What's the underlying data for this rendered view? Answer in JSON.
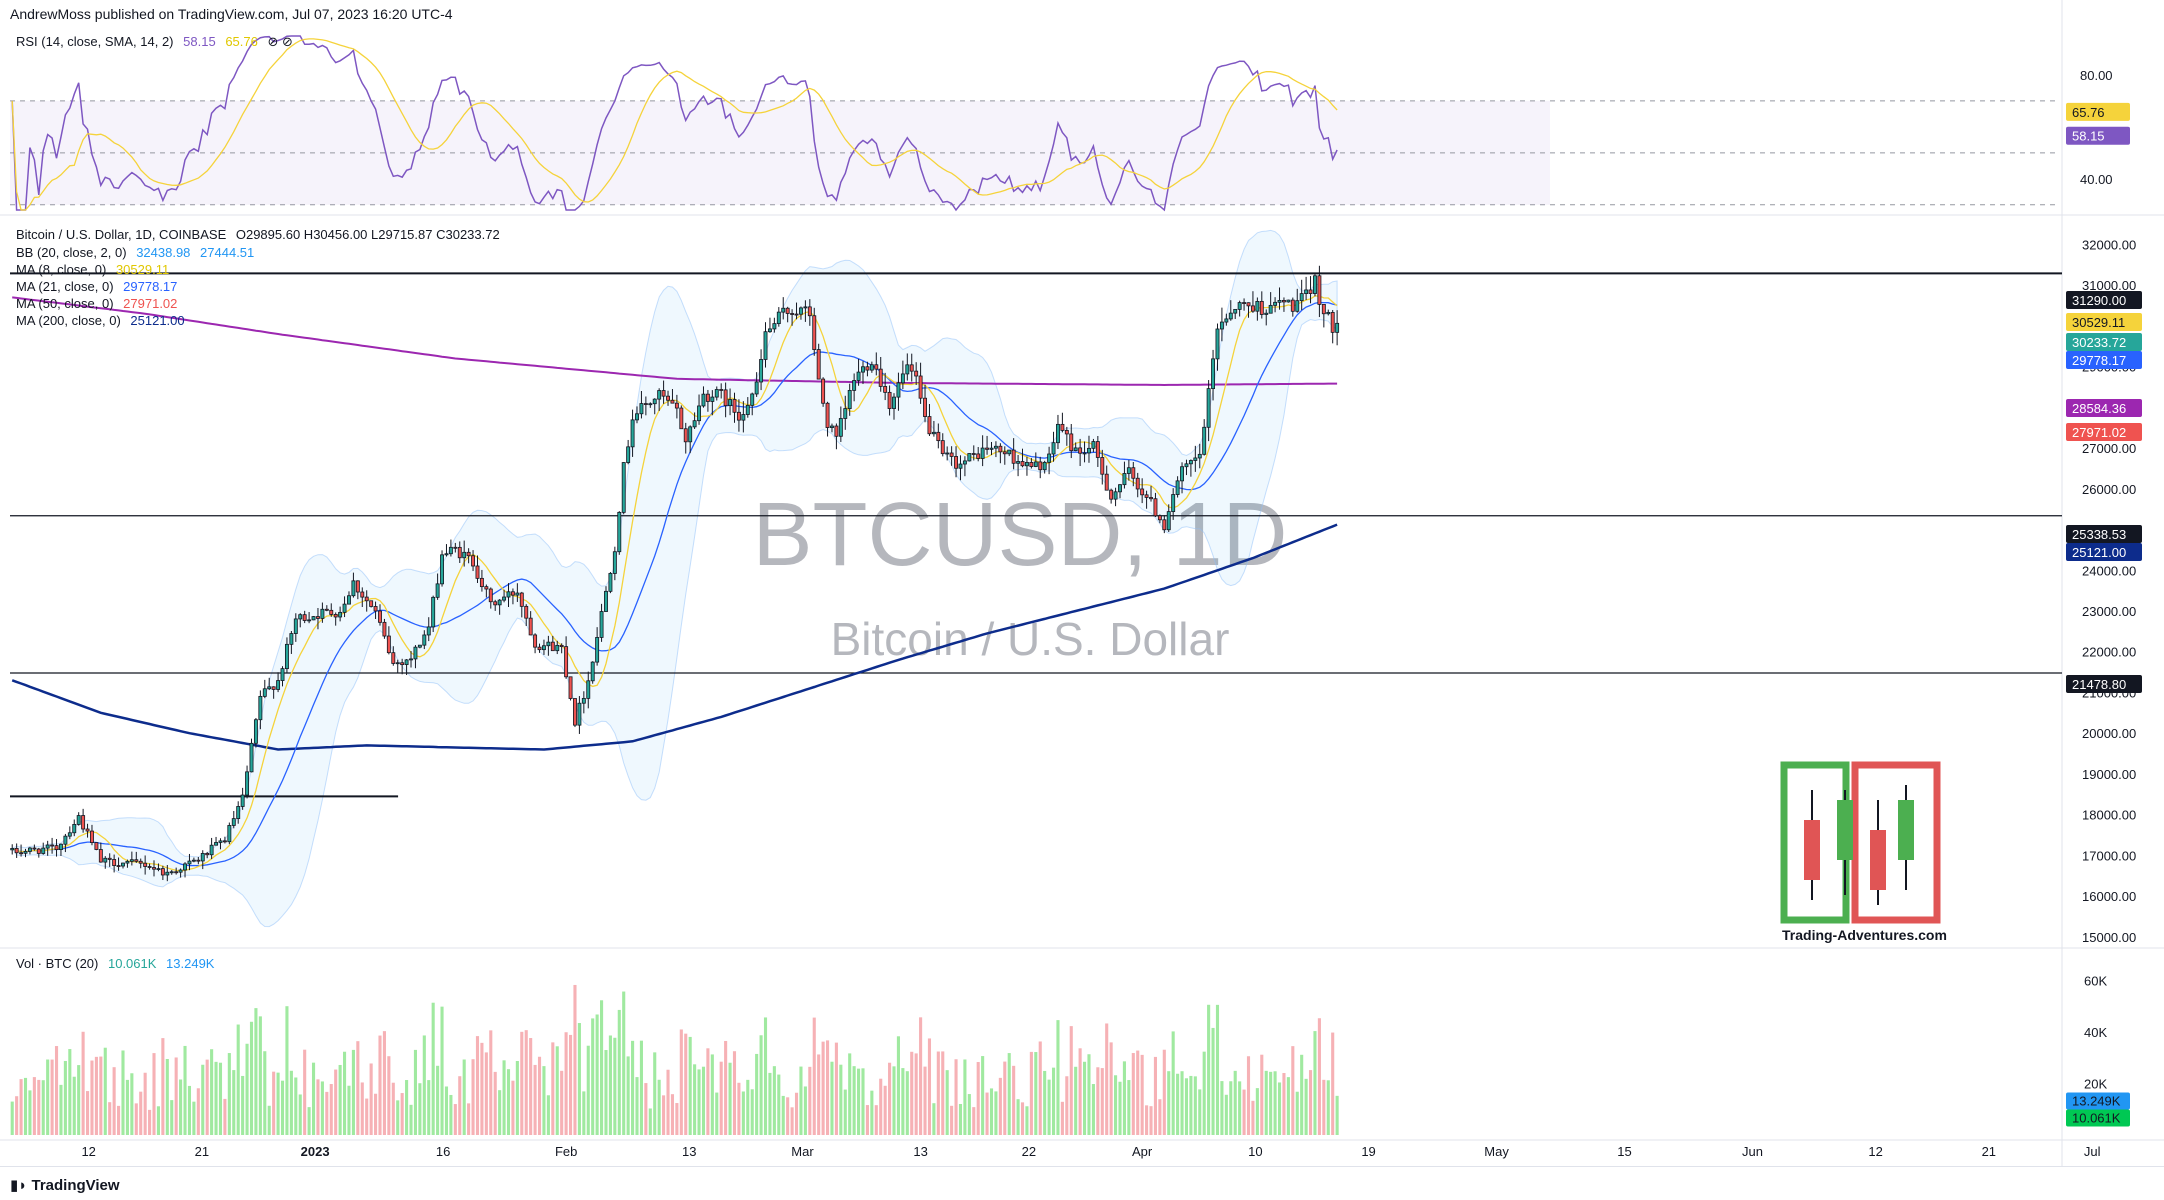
{
  "header": {
    "published": "AndrewMoss published on TradingView.com, Jul 07, 2023 16:20 UTC-4"
  },
  "footer": {
    "brand": "TradingView"
  },
  "rsi_legend": {
    "label": "RSI (14, close, SMA, 14, 2)",
    "rsi": "58.15",
    "sma": "65.76"
  },
  "price_legend": {
    "title": "Bitcoin / U.S. Dollar, 1D, COINBASE",
    "ohlc": "O29895.60  H30456.00  L29715.87  C30233.72",
    "bb": {
      "label": "BB (20, close, 2, 0)",
      "upper": "32438.98",
      "lower": "27444.51"
    },
    "ma8": {
      "label": "MA (8, close, 0)",
      "value": "30529.11"
    },
    "ma21": {
      "label": "MA (21, close, 0)",
      "value": "29778.17"
    },
    "ma50": {
      "label": "MA (50, close, 0)",
      "value": "27971.02"
    },
    "ma200": {
      "label": "MA (200, close, 0)",
      "value": "25121.00"
    }
  },
  "vol_legend": {
    "label": "Vol · BTC (20)",
    "vol": "10.061K",
    "ma": "13.249K"
  },
  "watermark": {
    "symbol": "BTCUSD, 1D",
    "name": "Bitcoin / U.S. Dollar"
  },
  "logo": {
    "text": "Trading-Adventures.com"
  },
  "colors": {
    "up": "#26a69a",
    "down": "#ef5350",
    "ma8": "#f5d33b",
    "ma21": "#2962ff",
    "ma50": "#ef5350",
    "ma200": "#0d2c8c",
    "ma_purple": "#9c27b0",
    "rsi": "#7e57c2",
    "bb_fill": "#2196f3"
  },
  "chart_data": {
    "type": "candlestick",
    "title": "BTCUSD, 1D",
    "x_ticks": [
      "12",
      "21",
      "2023",
      "16",
      "Feb",
      "13",
      "Mar",
      "13",
      "22",
      "Apr",
      "10",
      "19",
      "May",
      "15",
      "Jun",
      "12",
      "21",
      "Jul",
      "10",
      "19"
    ],
    "price_axis": {
      "ticks": [
        "32000.00",
        "31000.00",
        "30000.00",
        "29000.00",
        "28000.00",
        "27000.00",
        "26000.00",
        "25000.00",
        "24000.00",
        "23000.00",
        "22000.00",
        "21000.00",
        "20000.00",
        "19000.00",
        "18000.00",
        "17000.00",
        "16000.00",
        "15000.00"
      ],
      "ylim": [
        14800,
        32600
      ]
    },
    "price_labels": [
      {
        "value": "31290.00",
        "color": "#131722"
      },
      {
        "value": "30529.11",
        "color": "#f5d33b"
      },
      {
        "value": "30233.72",
        "color": "#26a69a"
      },
      {
        "value": "29778.17",
        "color": "#2962ff"
      },
      {
        "value": "28584.36",
        "color": "#9c27b0"
      },
      {
        "value": "27971.02",
        "color": "#ef5350"
      },
      {
        "value": "25338.53",
        "color": "#131722"
      },
      {
        "value": "25121.00",
        "color": "#0d2c8c"
      },
      {
        "value": "21478.80",
        "color": "#131722"
      }
    ],
    "horizontal_levels": [
      31290,
      25338.53,
      21478.8,
      18450
    ],
    "rsi_axis": {
      "ticks": [
        "80.00",
        "40.00"
      ],
      "ylim": [
        28,
        95
      ],
      "levels": [
        70,
        50,
        30
      ]
    },
    "rsi_labels": [
      {
        "value": "65.76",
        "color": "#f5d33b"
      },
      {
        "value": "58.15",
        "color": "#7e57c2"
      }
    ],
    "vol_axis": {
      "ticks": [
        "60K",
        "40K",
        "20K"
      ],
      "ylim": [
        0,
        68
      ]
    },
    "vol_labels": [
      {
        "value": "13.249K",
        "color": "#2196f3"
      },
      {
        "value": "10.061K",
        "color": "#26a69a"
      }
    ],
    "price_anchors": [
      [
        0,
        17080
      ],
      [
        10,
        17180
      ],
      [
        15,
        17950
      ],
      [
        20,
        16850
      ],
      [
        30,
        16780
      ],
      [
        35,
        16550
      ],
      [
        42,
        16900
      ],
      [
        48,
        17400
      ],
      [
        52,
        18400
      ],
      [
        56,
        20900
      ],
      [
        60,
        21300
      ],
      [
        64,
        22800
      ],
      [
        70,
        22950
      ],
      [
        74,
        23000
      ],
      [
        77,
        23700
      ],
      [
        82,
        22950
      ],
      [
        86,
        21700
      ],
      [
        90,
        21850
      ],
      [
        94,
        22600
      ],
      [
        97,
        24400
      ],
      [
        100,
        24500
      ],
      [
        104,
        24200
      ],
      [
        108,
        23150
      ],
      [
        114,
        23500
      ],
      [
        118,
        22200
      ],
      [
        124,
        22100
      ],
      [
        127,
        20300
      ],
      [
        130,
        21300
      ],
      [
        132,
        22400
      ],
      [
        136,
        24600
      ],
      [
        138,
        26500
      ],
      [
        140,
        27800
      ],
      [
        146,
        28300
      ],
      [
        150,
        27900
      ],
      [
        152,
        27200
      ],
      [
        156,
        28300
      ],
      [
        160,
        28300
      ],
      [
        164,
        27800
      ],
      [
        168,
        28500
      ],
      [
        170,
        29800
      ],
      [
        174,
        30300
      ],
      [
        176,
        30400
      ],
      [
        180,
        30300
      ],
      [
        182,
        28600
      ],
      [
        184,
        27600
      ],
      [
        186,
        27200
      ],
      [
        190,
        28700
      ],
      [
        194,
        29200
      ],
      [
        198,
        28100
      ],
      [
        202,
        29000
      ],
      [
        204,
        28600
      ],
      [
        206,
        27700
      ],
      [
        210,
        26800
      ],
      [
        214,
        26600
      ],
      [
        220,
        27000
      ],
      [
        224,
        26900
      ],
      [
        230,
        26500
      ],
      [
        234,
        26700
      ],
      [
        236,
        27600
      ],
      [
        240,
        26900
      ],
      [
        244,
        27000
      ],
      [
        248,
        25800
      ],
      [
        252,
        26400
      ],
      [
        256,
        25800
      ],
      [
        260,
        25100
      ],
      [
        262,
        25900
      ],
      [
        264,
        26400
      ],
      [
        268,
        26800
      ],
      [
        270,
        28300
      ],
      [
        272,
        30000
      ],
      [
        276,
        30500
      ],
      [
        280,
        30500
      ],
      [
        284,
        30400
      ],
      [
        286,
        30600
      ],
      [
        289,
        30500
      ],
      [
        292,
        30700
      ],
      [
        294,
        31100
      ],
      [
        296,
        30300
      ],
      [
        298,
        30000
      ],
      [
        299,
        30233
      ]
    ],
    "ma200_anchors": [
      [
        0,
        21300
      ],
      [
        20,
        20500
      ],
      [
        40,
        20000
      ],
      [
        60,
        19600
      ],
      [
        80,
        19700
      ],
      [
        100,
        19650
      ],
      [
        120,
        19600
      ],
      [
        140,
        19800
      ],
      [
        160,
        20400
      ],
      [
        180,
        21100
      ],
      [
        200,
        21800
      ],
      [
        220,
        22450
      ],
      [
        240,
        23000
      ],
      [
        260,
        23550
      ],
      [
        280,
        24300
      ],
      [
        299,
        25121
      ]
    ],
    "ma_purple_anchors": [
      [
        0,
        30700
      ],
      [
        30,
        30300
      ],
      [
        60,
        29800
      ],
      [
        100,
        29200
      ],
      [
        150,
        28700
      ],
      [
        200,
        28600
      ],
      [
        260,
        28550
      ],
      [
        299,
        28584
      ]
    ],
    "support_segment": {
      "value": 18450,
      "x_from": 0,
      "x_to": 60
    }
  }
}
